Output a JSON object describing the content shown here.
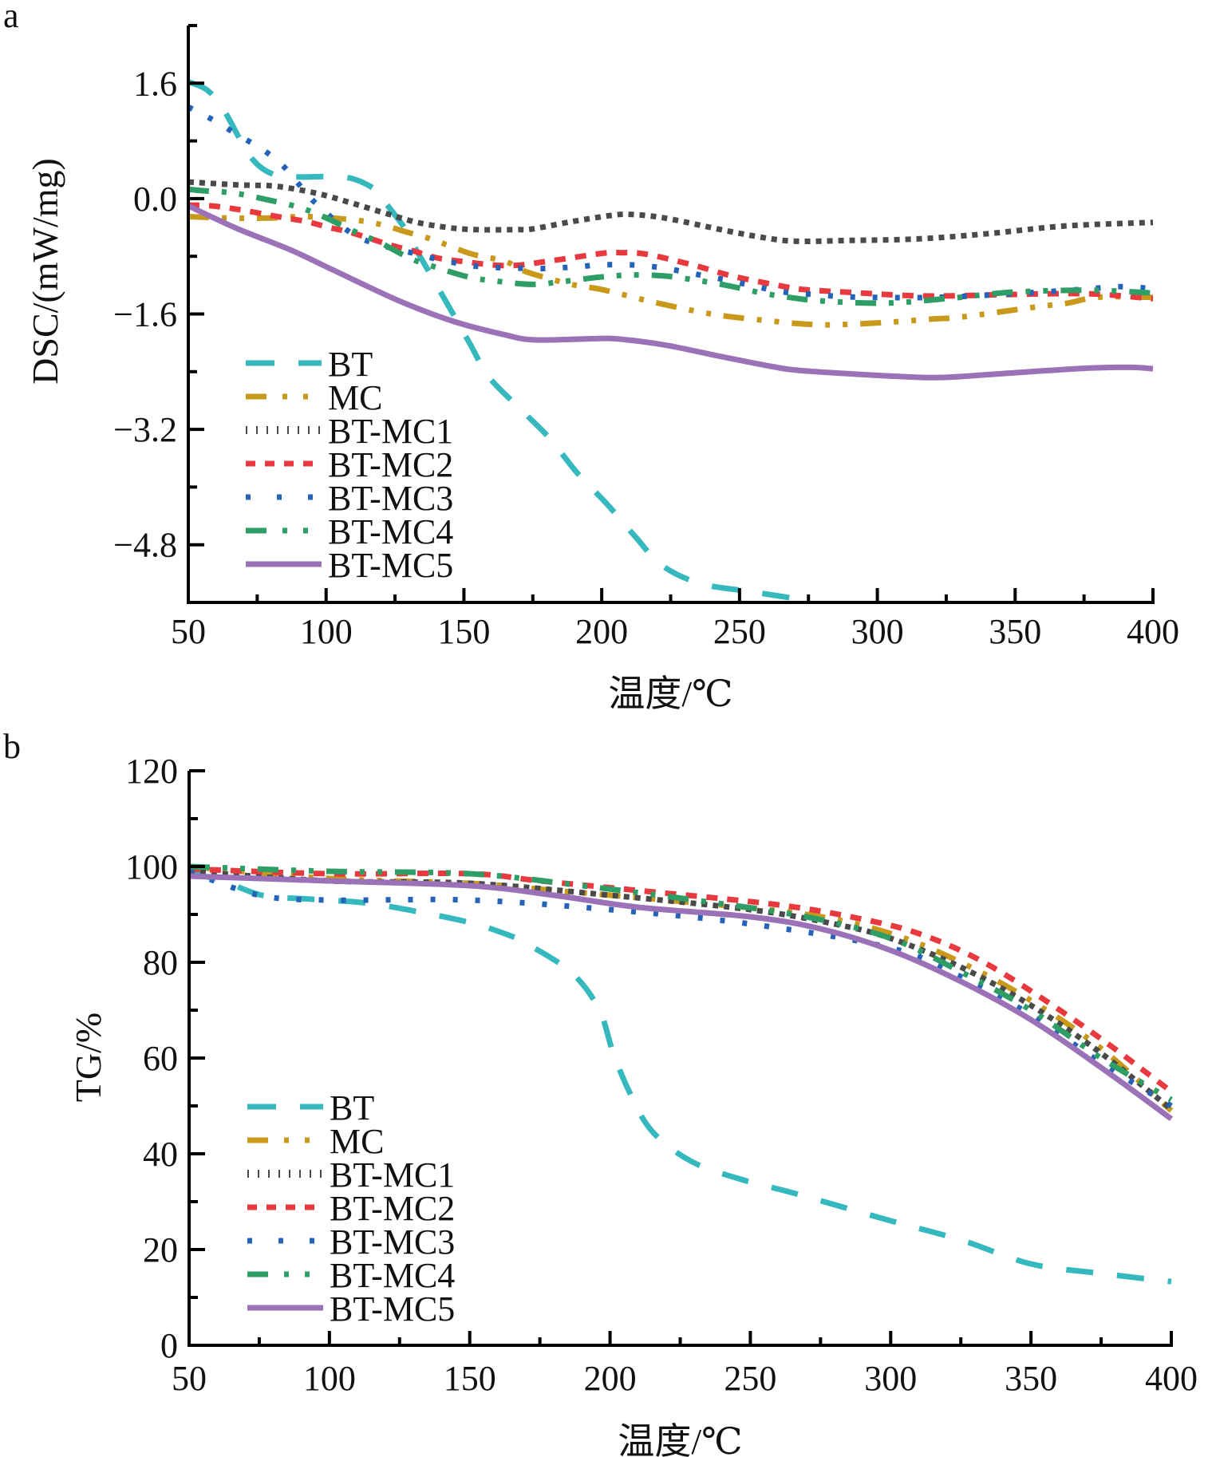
{
  "chart_data": [
    {
      "panel": "a",
      "type": "line",
      "title": "",
      "xlabel": "温度/℃",
      "ylabel": "DSC/(mW/mg)",
      "xlim": [
        50,
        400
      ],
      "ylim": [
        -5.6,
        2.4
      ],
      "xticks": [
        50,
        100,
        150,
        200,
        250,
        300,
        350,
        400
      ],
      "xtick_labels": [
        "50",
        "100",
        "150",
        "200",
        "250",
        "300",
        "350",
        "400"
      ],
      "yticks": [
        1.6,
        0.0,
        -1.6,
        -3.2,
        -4.8
      ],
      "ytick_labels": [
        "1.6",
        "0.0",
        "−1.6",
        "−3.2",
        "−4.8"
      ],
      "grid": false,
      "legend_position": "bottom-left",
      "series": [
        {
          "name": "BT",
          "color": "#35B8BE",
          "dash": "dash",
          "x": [
            50,
            57,
            63,
            73,
            82,
            91,
            108,
            119,
            121,
            128,
            130,
            141,
            152,
            159,
            170,
            181,
            191,
            202,
            212,
            222,
            236,
            254,
            276
          ],
          "y": [
            1.62,
            1.5,
            1.22,
            0.56,
            0.32,
            0.3,
            0.29,
            0.1,
            -0.03,
            -0.38,
            -0.53,
            -1.26,
            -2.0,
            -2.47,
            -2.9,
            -3.32,
            -3.8,
            -4.24,
            -4.68,
            -5.09,
            -5.34,
            -5.45,
            -5.58
          ]
        },
        {
          "name": "MC",
          "color": "#C9991C",
          "dash": "dashdotdot",
          "x": [
            50,
            65,
            79,
            93,
            111,
            121,
            128,
            138,
            147,
            154,
            165,
            173,
            189,
            200,
            217,
            234,
            245,
            262,
            274,
            284,
            302,
            320,
            331,
            358,
            369,
            376,
            384,
            400
          ],
          "y": [
            -0.25,
            -0.27,
            -0.27,
            -0.25,
            -0.3,
            -0.37,
            -0.45,
            -0.56,
            -0.69,
            -0.78,
            -0.87,
            -1.02,
            -1.19,
            -1.26,
            -1.42,
            -1.56,
            -1.63,
            -1.7,
            -1.74,
            -1.75,
            -1.72,
            -1.67,
            -1.64,
            -1.5,
            -1.45,
            -1.39,
            -1.36,
            -1.37
          ]
        },
        {
          "name": "BT-MC1",
          "color": "#4A4A4A",
          "dash": "dot",
          "x": [
            50,
            68,
            82,
            97,
            110,
            123,
            133,
            144,
            154,
            169,
            175,
            189,
            204,
            211,
            223,
            242,
            257,
            270,
            290,
            314,
            339,
            368,
            400
          ],
          "y": [
            0.23,
            0.19,
            0.17,
            0.07,
            -0.07,
            -0.22,
            -0.33,
            -0.4,
            -0.43,
            -0.43,
            -0.42,
            -0.32,
            -0.23,
            -0.22,
            -0.27,
            -0.42,
            -0.53,
            -0.59,
            -0.58,
            -0.56,
            -0.49,
            -0.38,
            -0.33
          ]
        },
        {
          "name": "BT-MC2",
          "color": "#E8393F",
          "dash": "shortdash",
          "x": [
            50,
            58,
            68,
            84,
            93,
            101,
            109,
            123,
            132,
            140,
            149,
            166,
            182,
            200,
            207,
            216,
            233,
            248,
            265,
            273,
            290,
            317,
            348,
            377,
            400
          ],
          "y": [
            -0.09,
            -0.1,
            -0.15,
            -0.26,
            -0.32,
            -0.4,
            -0.47,
            -0.64,
            -0.73,
            -0.82,
            -0.87,
            -0.93,
            -0.86,
            -0.76,
            -0.75,
            -0.77,
            -0.92,
            -1.08,
            -1.21,
            -1.26,
            -1.3,
            -1.35,
            -1.33,
            -1.32,
            -1.39
          ]
        },
        {
          "name": "BT-MC3",
          "color": "#2563B8",
          "dash": "sparsedot",
          "x": [
            50,
            60,
            68,
            77,
            85,
            91,
            97,
            112,
            133,
            144,
            155,
            166,
            178,
            189,
            200,
            211,
            222,
            233,
            244,
            255,
            265,
            277,
            288,
            299,
            321,
            344,
            366,
            377,
            389,
            400
          ],
          "y": [
            1.27,
            1.07,
            0.88,
            0.68,
            0.43,
            0.16,
            -0.09,
            -0.54,
            -0.77,
            -0.87,
            -0.94,
            -0.96,
            -0.97,
            -0.95,
            -0.92,
            -0.92,
            -0.96,
            -1.04,
            -1.12,
            -1.21,
            -1.29,
            -1.33,
            -1.36,
            -1.37,
            -1.37,
            -1.33,
            -1.28,
            -1.25,
            -1.22,
            -1.25
          ]
        },
        {
          "name": "BT-MC4",
          "color": "#2E9E66",
          "dash": "dashdotdot",
          "x": [
            50,
            55,
            66,
            78,
            90,
            99,
            110,
            120,
            130,
            138,
            152,
            163,
            175,
            186,
            199,
            210,
            222,
            234,
            245,
            257,
            268,
            280,
            303,
            327,
            348,
            372,
            386,
            400
          ],
          "y": [
            0.13,
            0.11,
            0.08,
            -0.01,
            -0.12,
            -0.25,
            -0.45,
            -0.62,
            -0.82,
            -0.93,
            -1.09,
            -1.15,
            -1.19,
            -1.15,
            -1.09,
            -1.06,
            -1.07,
            -1.13,
            -1.2,
            -1.3,
            -1.37,
            -1.42,
            -1.45,
            -1.38,
            -1.3,
            -1.27,
            -1.28,
            -1.31
          ]
        },
        {
          "name": "BT-MC5",
          "color": "#9B72B8",
          "dash": "solid",
          "x": [
            50,
            68,
            87,
            102,
            126,
            146,
            165,
            176,
            199,
            207,
            223,
            242,
            262,
            271,
            286,
            310,
            324,
            348,
            377,
            392,
            400
          ],
          "y": [
            -0.1,
            -0.42,
            -0.71,
            -0.98,
            -1.41,
            -1.7,
            -1.89,
            -1.96,
            -1.94,
            -1.95,
            -2.03,
            -2.18,
            -2.33,
            -2.38,
            -2.42,
            -2.47,
            -2.48,
            -2.42,
            -2.35,
            -2.34,
            -2.36
          ]
        }
      ]
    },
    {
      "panel": "b",
      "type": "line",
      "title": "",
      "xlabel": "温度/℃",
      "ylabel": "TG/%",
      "xlim": [
        50,
        400
      ],
      "ylim": [
        0,
        120
      ],
      "xticks": [
        50,
        100,
        150,
        200,
        250,
        300,
        350,
        400
      ],
      "xtick_labels": [
        "50",
        "100",
        "150",
        "200",
        "250",
        "300",
        "350",
        "400"
      ],
      "yticks": [
        0,
        20,
        40,
        60,
        80,
        100,
        120
      ],
      "ytick_labels": [
        "0",
        "20",
        "40",
        "60",
        "80",
        "100",
        "120"
      ],
      "grid": false,
      "legend_position": "bottom-left",
      "series": [
        {
          "name": "BT",
          "color": "#35B8BE",
          "dash": "dash",
          "x": [
            50,
            62,
            76,
            93,
            113,
            133,
            152,
            166,
            170,
            186,
            196,
            201,
            207,
            215,
            229,
            247,
            266,
            300,
            325,
            350,
            375,
            400
          ],
          "y": [
            98.7,
            97,
            94,
            93.2,
            92.4,
            90.4,
            88,
            85.2,
            84,
            78,
            70.3,
            61.3,
            52.8,
            44.7,
            38.4,
            34.6,
            31.7,
            26,
            22,
            17,
            15,
            13.3
          ]
        },
        {
          "name": "MC",
          "color": "#C9991C",
          "dash": "dashdotdot",
          "x": [
            50,
            100,
            150,
            180,
            220,
            270,
            300,
            325,
            350,
            375,
            400
          ],
          "y": [
            100,
            97.5,
            96.5,
            95,
            93,
            90,
            86,
            80,
            72,
            62,
            49
          ]
        },
        {
          "name": "BT-MC1",
          "color": "#4A4A4A",
          "dash": "dot",
          "x": [
            50,
            100,
            150,
            200,
            250,
            280,
            300,
            325,
            350,
            375,
            400
          ],
          "y": [
            99,
            97,
            96.5,
            94,
            91,
            88,
            85,
            79,
            71,
            61,
            49.3
          ]
        },
        {
          "name": "BT-MC2",
          "color": "#E8393F",
          "dash": "shortdash",
          "x": [
            50,
            100,
            150,
            175,
            210,
            260,
            290,
            310,
            330,
            350,
            375,
            400
          ],
          "y": [
            99.5,
            98.5,
            98.5,
            97,
            95,
            92,
            89,
            86,
            81,
            74,
            64,
            53
          ]
        },
        {
          "name": "BT-MC3",
          "color": "#2563B8",
          "dash": "sparsedot",
          "x": [
            50,
            75,
            100,
            150,
            200,
            250,
            300,
            325,
            350,
            375,
            400
          ],
          "y": [
            99,
            94,
            93,
            93,
            91,
            88,
            83,
            77,
            69,
            59,
            50
          ]
        },
        {
          "name": "BT-MC4",
          "color": "#2E9E66",
          "dash": "dashdotdot",
          "x": [
            50,
            100,
            150,
            190,
            230,
            270,
            300,
            325,
            350,
            375,
            400
          ],
          "y": [
            100,
            99,
            98.5,
            96,
            93,
            89.5,
            85,
            78,
            70,
            60,
            51.3
          ]
        },
        {
          "name": "BT-MC5",
          "color": "#9B72B8",
          "dash": "solid",
          "x": [
            50,
            100,
            150,
            180,
            210,
            250,
            275,
            300,
            325,
            350,
            375,
            400
          ],
          "y": [
            98,
            97,
            96,
            94,
            91.5,
            89.5,
            87,
            82.5,
            76,
            68,
            58,
            47.3
          ]
        }
      ]
    }
  ]
}
